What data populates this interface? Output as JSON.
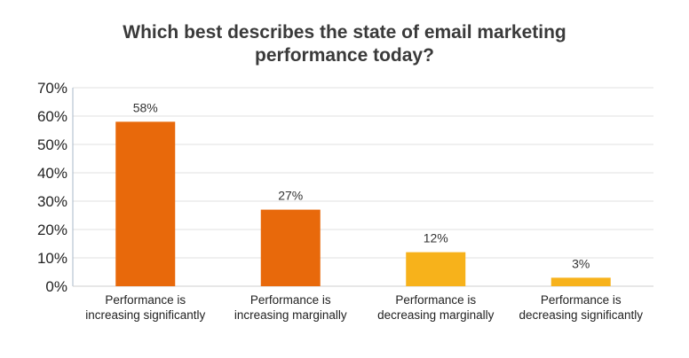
{
  "chart_data": {
    "type": "bar",
    "title": [
      "Which best describes the state of email marketing",
      "performance today?"
    ],
    "categories": [
      [
        "Performance is",
        "increasing significantly"
      ],
      [
        "Performance is",
        "increasing marginally"
      ],
      [
        "Performance is",
        "decreasing marginally"
      ],
      [
        "Performance is",
        "decreasing significantly"
      ]
    ],
    "values": [
      58,
      27,
      12,
      3
    ],
    "data_labels": [
      "58%",
      "27%",
      "12%",
      "3%"
    ],
    "colors": [
      "#e8690b",
      "#e8690b",
      "#f7b21b",
      "#f7b21b"
    ],
    "ylim": [
      0,
      70
    ],
    "y_ticks": [
      0,
      10,
      20,
      30,
      40,
      50,
      60,
      70
    ],
    "y_tick_labels": [
      "0%",
      "10%",
      "20%",
      "30%",
      "40%",
      "50%",
      "60%",
      "70%"
    ],
    "grid": true,
    "legend": "none",
    "xlabel": "",
    "ylabel": ""
  }
}
